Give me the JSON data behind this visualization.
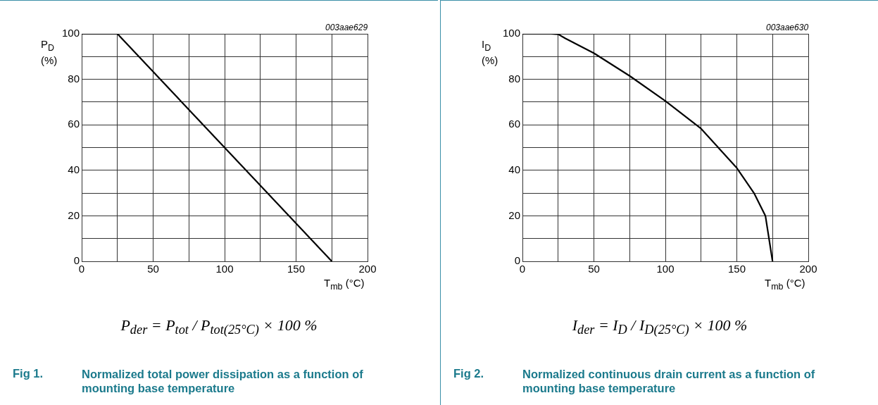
{
  "chart_data": [
    {
      "type": "line",
      "title": "Normalized total power dissipation as a function of mounting base temperature",
      "xlabel": "T$_{mb}$ (°C)",
      "ylabel": "P$_{D}$ (%)",
      "annotations": [
        "003aae629",
        "P$_{der}$ = P$_{tot}$ / P$_{tot(25°C)}$ × 100 %",
        "Fig 1."
      ],
      "x": [
        0,
        25,
        175
      ],
      "series": [
        {
          "color": "#000000",
          "values": [
            100,
            100,
            0
          ]
        }
      ],
      "xlim": [
        0,
        200
      ],
      "xticks": [
        0,
        {
          "value": 25,
          "label": null
        },
        50,
        {
          "value": 75,
          "label": null
        },
        100,
        {
          "value": 125,
          "label": null
        },
        150,
        {
          "value": 175,
          "label": null
        },
        200
      ],
      "ylim": [
        0,
        100
      ],
      "yticks": [
        0,
        {
          "value": 10,
          "label": null
        },
        20,
        {
          "value": 30,
          "label": null
        },
        40,
        {
          "value": 50,
          "label": null
        },
        60,
        {
          "value": 70,
          "label": null
        },
        80,
        {
          "value": 90,
          "label": null
        },
        100
      ],
      "grid": true,
      "legend": false,
      "marker": "none",
      "line_style": "solid"
    },
    {
      "type": "line",
      "title": "Normalized continuous drain current as a function of mounting base temperature",
      "xlabel": "T$_{mb}$ (°C)",
      "ylabel": "I$_{D}$ (%)",
      "annotations": [
        "003aae630",
        "I$_{der}$ = I$_{D}$ / I$_{D(25°C)}$ × 100 %",
        "Fig 2."
      ],
      "x": [
        0,
        20,
        25,
        30,
        50,
        75,
        100,
        125,
        137,
        150,
        162,
        170,
        175
      ],
      "series": [
        {
          "color": "#000000",
          "values": [
            100,
            100,
            99.8,
            98,
            91.5,
            81.5,
            70.5,
            58.3,
            50,
            41,
            30,
            20,
            0
          ]
        }
      ],
      "xlim": [
        0,
        200
      ],
      "xticks": [
        0,
        {
          "value": 25,
          "label": null
        },
        50,
        {
          "value": 75,
          "label": null
        },
        100,
        {
          "value": 125,
          "label": null
        },
        150,
        {
          "value": 175,
          "label": null
        },
        200
      ],
      "ylim": [
        0,
        100
      ],
      "yticks": [
        0,
        {
          "value": 10,
          "label": null
        },
        20,
        {
          "value": 30,
          "label": null
        },
        40,
        {
          "value": 50,
          "label": null
        },
        60,
        {
          "value": 70,
          "label": null
        },
        80,
        {
          "value": 90,
          "label": null
        },
        100
      ],
      "grid": true,
      "legend": false,
      "marker": "none",
      "line_style": "solid"
    }
  ]
}
